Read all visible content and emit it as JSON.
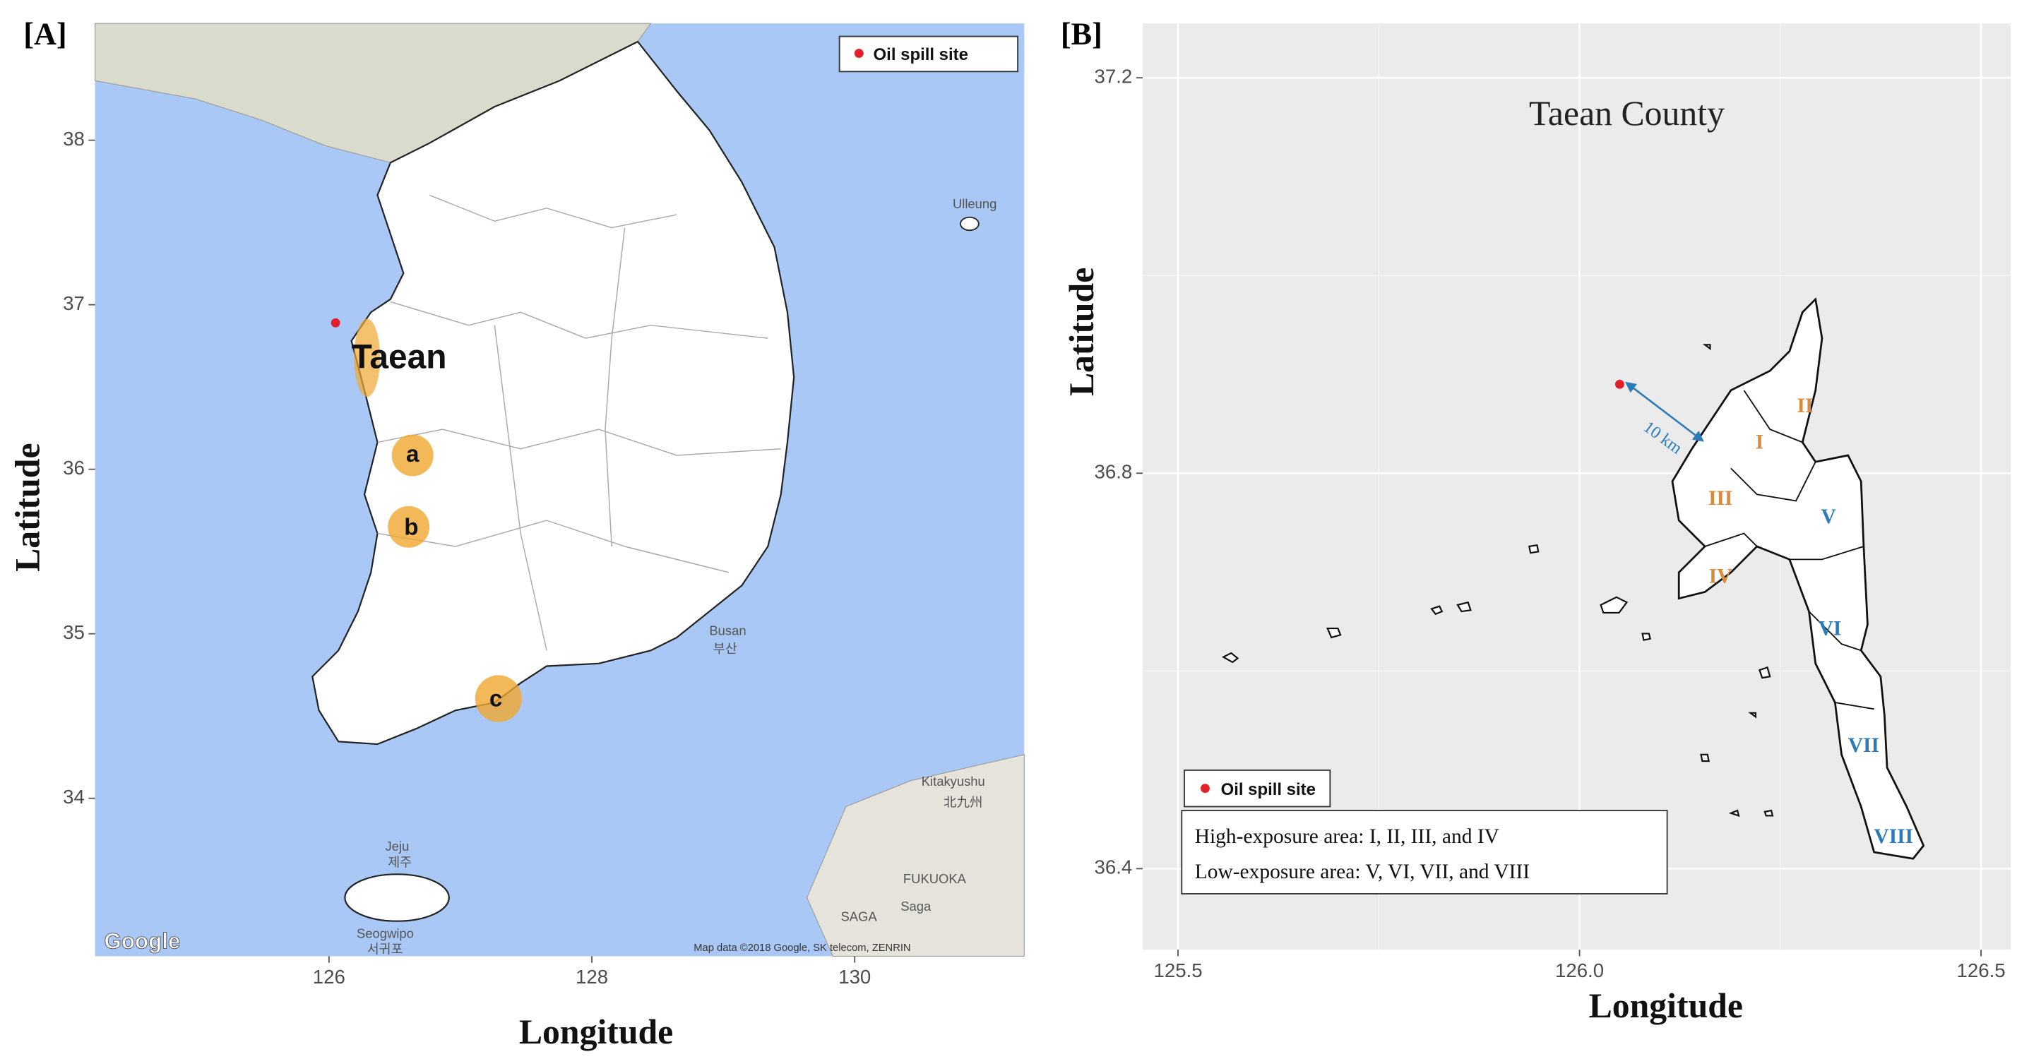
{
  "panel_a": {
    "label": "[A]",
    "xlabel": "Longitude",
    "ylabel": "Latitude",
    "xlim": [
      124.22,
      131.29
    ],
    "ylim": [
      33.04,
      38.71
    ],
    "xticks": [
      126,
      128,
      130
    ],
    "yticks": [
      34,
      35,
      36,
      37,
      38
    ],
    "legend": "Oil spill site",
    "map_labels": [
      "Taean",
      "a",
      "b",
      "c",
      "Ulleung",
      "Busan",
      "부산",
      "Kitakyushu",
      "北九州",
      "Jeju",
      "제주",
      "Seogwipo",
      "서귀포",
      "FUKUOKA",
      "Saga",
      "SAGA",
      "Google",
      "Map data ©2018 Google, SK telecom, ZENRIN"
    ]
  },
  "panel_b": {
    "label": "[B]",
    "title": "Taean County",
    "xlabel": "Longitude",
    "ylabel": "Latitude",
    "xlim": [
      125.456,
      126.537
    ],
    "ylim": [
      36.318,
      37.255
    ],
    "xticks": [
      125.5,
      {
        "value": 126,
        "label": "126.0"
      },
      126.5
    ],
    "yticks": [
      36.4,
      36.8,
      37.2
    ],
    "grid": true,
    "regions": [
      "I",
      "II",
      "III",
      "IV",
      "V",
      "VI",
      "VII",
      "VIII"
    ],
    "distance": "10 km",
    "legend": "Oil spill site",
    "notes": [
      "High-exposure area: I, II, III, and IV",
      "Low-exposure area: V, VI, VII, and VIII"
    ]
  },
  "spill_site": {
    "lon": 126.05,
    "lat": 36.89,
    "color": "#e3202a"
  }
}
